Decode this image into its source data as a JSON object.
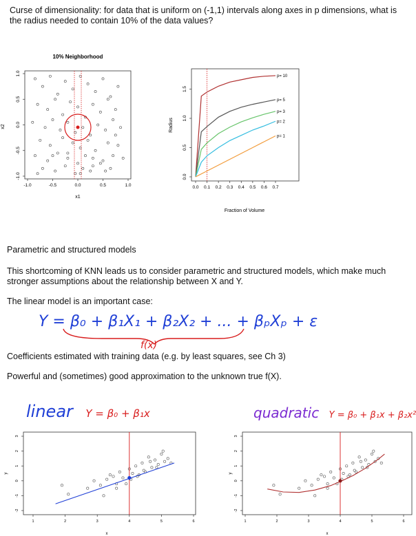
{
  "header": {
    "question": "Curse of dimensionality: for data that is uniform on (-1,1) intervals along axes in p dimensions, what is the radius needed to contain 10% of the data values?"
  },
  "figures": {
    "neighborhood": {
      "title": "10% Neighborhood",
      "xlabel": "x1",
      "ylabel": "x2",
      "xticks": [
        "-1.0",
        "-0.5",
        "0.0",
        "0.5",
        "1.0"
      ],
      "yticks": [
        "-1.0",
        "-0.5",
        "0.0",
        "0.5",
        "1.0"
      ]
    },
    "radius": {
      "xlabel": "Fraction of Volume",
      "ylabel": "Radius",
      "xticks": [
        "0.0",
        "0.1",
        "0.2",
        "0.3",
        "0.4",
        "0.5",
        "0.6",
        "0.7"
      ],
      "yticks": [
        "0.0",
        "0.5",
        "1.0",
        "1.5"
      ],
      "labels": [
        "p= 10",
        "p= 5",
        "p= 3",
        "p= 2",
        "p= 1"
      ]
    },
    "linear": {
      "xticks": [
        "1",
        "2",
        "3",
        "4",
        "5",
        "6"
      ],
      "yticks": [
        "-2",
        "-1",
        "0",
        "1",
        "2",
        "3"
      ],
      "xlabel": "x",
      "ylabel": "y"
    },
    "quadratic": {
      "xticks": [
        "1",
        "2",
        "3",
        "4",
        "5",
        "6"
      ],
      "yticks": [
        "-2",
        "-1",
        "0",
        "1",
        "2",
        "3"
      ],
      "xlabel": "x",
      "ylabel": "y"
    }
  },
  "chart_data": [
    {
      "type": "line",
      "xlabel": "Fraction of Volume",
      "ylabel": "Radius",
      "xlim": [
        0,
        0.7
      ],
      "ylim": [
        0,
        1.8
      ],
      "series": [
        {
          "name": "p= 10",
          "color": "#b03030",
          "x": [
            0,
            0.05,
            0.1,
            0.2,
            0.3,
            0.4,
            0.5,
            0.6,
            0.7
          ],
          "values": [
            0,
            1.38,
            1.45,
            1.55,
            1.62,
            1.66,
            1.7,
            1.72,
            1.73
          ]
        },
        {
          "name": "p= 5",
          "color": "#555555",
          "x": [
            0,
            0.05,
            0.1,
            0.2,
            0.3,
            0.4,
            0.5,
            0.6,
            0.7
          ],
          "values": [
            0,
            0.77,
            0.86,
            1.02,
            1.12,
            1.19,
            1.24,
            1.28,
            1.32
          ]
        },
        {
          "name": "p= 3",
          "color": "#66c46a",
          "x": [
            0,
            0.05,
            0.1,
            0.2,
            0.3,
            0.4,
            0.5,
            0.6,
            0.7
          ],
          "values": [
            0,
            0.47,
            0.58,
            0.74,
            0.85,
            0.94,
            1.01,
            1.07,
            1.12
          ]
        },
        {
          "name": "p= 2",
          "color": "#33bde0",
          "x": [
            0,
            0.05,
            0.1,
            0.2,
            0.3,
            0.4,
            0.5,
            0.6,
            0.7
          ],
          "values": [
            0,
            0.25,
            0.36,
            0.5,
            0.62,
            0.71,
            0.8,
            0.87,
            0.95
          ]
        },
        {
          "name": "p= 1",
          "color": "#f29b3a",
          "x": [
            0,
            0.1,
            0.2,
            0.3,
            0.4,
            0.5,
            0.6,
            0.7
          ],
          "values": [
            0,
            0.1,
            0.2,
            0.3,
            0.4,
            0.5,
            0.6,
            0.7
          ]
        }
      ],
      "vline_x": 0.1
    },
    {
      "type": "scatter",
      "xlim": [
        -1,
        1
      ],
      "ylim": [
        -1,
        1
      ],
      "x": [
        -0.85,
        -0.7,
        -0.55,
        -0.4,
        -0.25,
        -0.1,
        0.05,
        0.2,
        0.35,
        0.5,
        0.65,
        0.8,
        -0.8,
        -0.6,
        -0.45,
        -0.3,
        -0.15,
        0.0,
        0.15,
        0.3,
        0.45,
        0.6,
        0.75,
        -0.9,
        -0.65,
        -0.5,
        -0.35,
        -0.2,
        -0.05,
        0.1,
        0.25,
        0.4,
        0.55,
        0.7,
        0.85,
        -0.75,
        -0.55,
        -0.3,
        -0.1,
        0.05,
        0.2,
        0.35,
        0.6,
        0.8,
        -0.85,
        -0.6,
        -0.4,
        -0.2,
        0.0,
        0.15,
        0.3,
        0.5,
        0.7,
        -0.7,
        -0.45,
        -0.25,
        -0.05,
        0.1,
        0.25,
        0.45,
        0.65,
        0.9,
        -0.8,
        -0.5,
        -0.2,
        0.05,
        0.3,
        0.55,
        0.75
      ],
      "y": [
        0.9,
        0.75,
        0.95,
        0.6,
        0.85,
        0.7,
        0.95,
        0.8,
        0.65,
        0.9,
        0.55,
        0.75,
        0.4,
        0.3,
        0.5,
        0.2,
        0.45,
        0.35,
        0.15,
        0.4,
        0.25,
        0.5,
        0.3,
        0.05,
        -0.05,
        0.1,
        -0.1,
        0.05,
        -0.15,
        -0.05,
        -0.2,
        0.0,
        -0.1,
        0.1,
        -0.05,
        -0.3,
        -0.4,
        -0.25,
        -0.35,
        -0.45,
        -0.3,
        -0.5,
        -0.35,
        -0.4,
        -0.6,
        -0.7,
        -0.55,
        -0.65,
        -0.75,
        -0.6,
        -0.8,
        -0.7,
        -0.6,
        -0.85,
        -0.9,
        -0.8,
        -0.95,
        -0.85,
        -0.9,
        -0.75,
        -0.85,
        -0.65,
        -0.95,
        -0.6,
        -0.55,
        -0.95,
        -0.65,
        -0.9,
        -0.2
      ],
      "center": [
        0,
        0
      ],
      "radius_circle": 0.25
    },
    {
      "type": "scatter",
      "xlim": [
        1,
        6
      ],
      "ylim": [
        -2,
        3
      ],
      "x": [
        1.9,
        2.1,
        2.7,
        2.9,
        3.1,
        3.3,
        3.4,
        3.5,
        3.6,
        3.7,
        3.8,
        3.9,
        4.0,
        4.1,
        4.2,
        4.3,
        4.4,
        4.5,
        4.6,
        4.7,
        4.8,
        4.9,
        5.0,
        5.1,
        5.2,
        5.3,
        3.2,
        3.6,
        4.05,
        4.25,
        4.45,
        4.65,
        4.85,
        5.05
      ],
      "y": [
        -0.3,
        -0.9,
        -0.5,
        0.0,
        -0.3,
        0.1,
        0.4,
        0.3,
        -0.5,
        0.6,
        0.2,
        -0.2,
        0.8,
        0.5,
        1.0,
        0.4,
        1.2,
        0.6,
        1.6,
        0.9,
        1.4,
        1.1,
        1.8,
        1.3,
        1.5,
        1.2,
        -1.0,
        -0.2,
        0.1,
        0.3,
        0.7,
        1.3,
        0.9,
        2.0
      ],
      "fit": {
        "x": [
          1.7,
          5.4
        ],
        "y": [
          -1.55,
          1.2
        ]
      },
      "vline_x": 4,
      "highlight": [
        4,
        0.2
      ]
    },
    {
      "type": "scatter",
      "xlim": [
        1,
        6
      ],
      "ylim": [
        -2,
        3
      ],
      "x": [
        1.9,
        2.1,
        2.7,
        2.9,
        3.1,
        3.3,
        3.4,
        3.5,
        3.6,
        3.7,
        3.8,
        3.9,
        4.0,
        4.1,
        4.2,
        4.3,
        4.4,
        4.5,
        4.6,
        4.7,
        4.8,
        4.9,
        5.0,
        5.1,
        5.2,
        5.3,
        3.2,
        3.6,
        4.05,
        4.25,
        4.45,
        4.65,
        4.85,
        5.05
      ],
      "y": [
        -0.3,
        -0.9,
        -0.5,
        0.0,
        -0.3,
        0.1,
        0.4,
        0.3,
        -0.5,
        0.6,
        0.2,
        -0.2,
        0.8,
        0.5,
        1.0,
        0.4,
        1.2,
        0.6,
        1.6,
        0.9,
        1.4,
        1.1,
        1.8,
        1.3,
        1.5,
        1.2,
        -1.0,
        -0.2,
        0.1,
        0.3,
        0.7,
        1.3,
        0.9,
        2.0
      ],
      "fit": {
        "x": [
          1.7,
          2.2,
          2.7,
          3.2,
          3.7,
          4.0,
          4.4,
          4.8,
          5.2,
          5.4
        ],
        "y": [
          -0.55,
          -0.75,
          -0.78,
          -0.62,
          -0.32,
          -0.05,
          0.35,
          0.85,
          1.45,
          1.8
        ]
      },
      "vline_x": 4,
      "highlight": [
        4,
        0.0
      ]
    }
  ],
  "text": {
    "section_title": "Parametric and structured models",
    "para1": "This shortcoming of KNN leads us to consider parametric and structured models, which make much stronger assumptions about the relationship between X and Y.",
    "para2": "The linear model is an important case:",
    "para3": "Coefficients estimated with training data (e.g. by least squares, see Ch 3)",
    "para4": "Powerful and (sometimes) good approximation to the unknown true f(X)."
  },
  "handwriting": {
    "equation": "Y = β₀ + β₁X₁ + β₂X₂ + ... + βₚXₚ + ε",
    "fx": "f(x)",
    "linear_word": "linear",
    "linear_eq": "Y = β₀ + β₁x",
    "quadratic_word": "quadratic",
    "quadratic_eq": "Y = β₀ + β₁x + β₂x²"
  },
  "colors": {
    "ink_blue": "#1f3fd6",
    "ink_red": "#d81c1c",
    "ink_purple": "#7b2bd1"
  }
}
